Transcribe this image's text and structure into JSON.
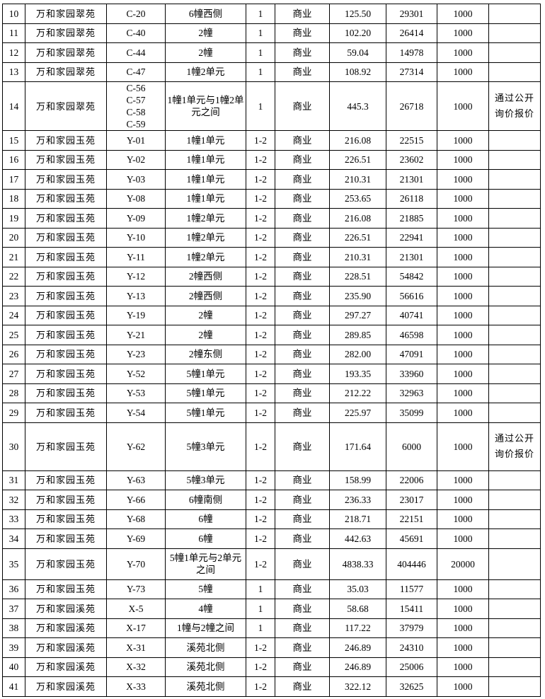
{
  "rows": [
    {
      "no": "10",
      "project": "万和家园翠苑",
      "code": "C-20",
      "location": "6幢西侧",
      "floor": "1",
      "use": "商业",
      "area": "125.50",
      "rent": "29301",
      "deposit": "1000",
      "note": ""
    },
    {
      "no": "11",
      "project": "万和家园翠苑",
      "code": "C-40",
      "location": "2幢",
      "floor": "1",
      "use": "商业",
      "area": "102.20",
      "rent": "26414",
      "deposit": "1000",
      "note": ""
    },
    {
      "no": "12",
      "project": "万和家园翠苑",
      "code": "C-44",
      "location": "2幢",
      "floor": "1",
      "use": "商业",
      "area": "59.04",
      "rent": "14978",
      "deposit": "1000",
      "note": ""
    },
    {
      "no": "13",
      "project": "万和家园翠苑",
      "code": "C-47",
      "location": "1幢2单元",
      "floor": "1",
      "use": "商业",
      "area": "108.92",
      "rent": "27314",
      "deposit": "1000",
      "note": ""
    },
    {
      "no": "14",
      "project": "万和家园翠苑",
      "code": "C-56\nC-57\nC-58\nC-59",
      "location": "1幢1单元与1幢2单元之间",
      "floor": "1",
      "use": "商业",
      "area": "445.3",
      "rent": "26718",
      "deposit": "1000",
      "note": "通过公开询价报价"
    },
    {
      "no": "15",
      "project": "万和家园玉苑",
      "code": "Y-01",
      "location": "1幢1单元",
      "floor": "1-2",
      "use": "商业",
      "area": "216.08",
      "rent": "22515",
      "deposit": "1000",
      "note": ""
    },
    {
      "no": "16",
      "project": "万和家园玉苑",
      "code": "Y-02",
      "location": "1幢1单元",
      "floor": "1-2",
      "use": "商业",
      "area": "226.51",
      "rent": "23602",
      "deposit": "1000",
      "note": ""
    },
    {
      "no": "17",
      "project": "万和家园玉苑",
      "code": "Y-03",
      "location": "1幢1单元",
      "floor": "1-2",
      "use": "商业",
      "area": "210.31",
      "rent": "21301",
      "deposit": "1000",
      "note": ""
    },
    {
      "no": "18",
      "project": "万和家园玉苑",
      "code": "Y-08",
      "location": "1幢1单元",
      "floor": "1-2",
      "use": "商业",
      "area": "253.65",
      "rent": "26118",
      "deposit": "1000",
      "note": ""
    },
    {
      "no": "19",
      "project": "万和家园玉苑",
      "code": "Y-09",
      "location": "1幢2单元",
      "floor": "1-2",
      "use": "商业",
      "area": "216.08",
      "rent": "21885",
      "deposit": "1000",
      "note": ""
    },
    {
      "no": "20",
      "project": "万和家园玉苑",
      "code": "Y-10",
      "location": "1幢2单元",
      "floor": "1-2",
      "use": "商业",
      "area": "226.51",
      "rent": "22941",
      "deposit": "1000",
      "note": ""
    },
    {
      "no": "21",
      "project": "万和家园玉苑",
      "code": "Y-11",
      "location": "1幢2单元",
      "floor": "1-2",
      "use": "商业",
      "area": "210.31",
      "rent": "21301",
      "deposit": "1000",
      "note": ""
    },
    {
      "no": "22",
      "project": "万和家园玉苑",
      "code": "Y-12",
      "location": "2幢西侧",
      "floor": "1-2",
      "use": "商业",
      "area": "228.51",
      "rent": "54842",
      "deposit": "1000",
      "note": ""
    },
    {
      "no": "23",
      "project": "万和家园玉苑",
      "code": "Y-13",
      "location": "2幢西侧",
      "floor": "1-2",
      "use": "商业",
      "area": "235.90",
      "rent": "56616",
      "deposit": "1000",
      "note": ""
    },
    {
      "no": "24",
      "project": "万和家园玉苑",
      "code": "Y-19",
      "location": "2幢",
      "floor": "1-2",
      "use": "商业",
      "area": "297.27",
      "rent": "40741",
      "deposit": "1000",
      "note": ""
    },
    {
      "no": "25",
      "project": "万和家园玉苑",
      "code": "Y-21",
      "location": "2幢",
      "floor": "1-2",
      "use": "商业",
      "area": "289.85",
      "rent": "46598",
      "deposit": "1000",
      "note": ""
    },
    {
      "no": "26",
      "project": "万和家园玉苑",
      "code": "Y-23",
      "location": "2幢东侧",
      "floor": "1-2",
      "use": "商业",
      "area": "282.00",
      "rent": "47091",
      "deposit": "1000",
      "note": ""
    },
    {
      "no": "27",
      "project": "万和家园玉苑",
      "code": "Y-52",
      "location": "5幢1单元",
      "floor": "1-2",
      "use": "商业",
      "area": "193.35",
      "rent": "33960",
      "deposit": "1000",
      "note": ""
    },
    {
      "no": "28",
      "project": "万和家园玉苑",
      "code": "Y-53",
      "location": "5幢1单元",
      "floor": "1-2",
      "use": "商业",
      "area": "212.22",
      "rent": "32963",
      "deposit": "1000",
      "note": ""
    },
    {
      "no": "29",
      "project": "万和家园玉苑",
      "code": "Y-54",
      "location": "5幢1单元",
      "floor": "1-2",
      "use": "商业",
      "area": "225.97",
      "rent": "35099",
      "deposit": "1000",
      "note": ""
    },
    {
      "no": "30",
      "project": "万和家园玉苑",
      "code": "Y-62",
      "location": "5幢3单元",
      "floor": "1-2",
      "use": "商业",
      "area": "171.64",
      "rent": "6000",
      "deposit": "1000",
      "note": "通过公开询价报价"
    },
    {
      "no": "31",
      "project": "万和家园玉苑",
      "code": "Y-63",
      "location": "5幢3单元",
      "floor": "1-2",
      "use": "商业",
      "area": "158.99",
      "rent": "22006",
      "deposit": "1000",
      "note": ""
    },
    {
      "no": "32",
      "project": "万和家园玉苑",
      "code": "Y-66",
      "location": "6幢南侧",
      "floor": "1-2",
      "use": "商业",
      "area": "236.33",
      "rent": "23017",
      "deposit": "1000",
      "note": ""
    },
    {
      "no": "33",
      "project": "万和家园玉苑",
      "code": "Y-68",
      "location": "6幢",
      "floor": "1-2",
      "use": "商业",
      "area": "218.71",
      "rent": "22151",
      "deposit": "1000",
      "note": ""
    },
    {
      "no": "34",
      "project": "万和家园玉苑",
      "code": "Y-69",
      "location": "6幢",
      "floor": "1-2",
      "use": "商业",
      "area": "442.63",
      "rent": "45691",
      "deposit": "1000",
      "note": ""
    },
    {
      "no": "35",
      "project": "万和家园玉苑",
      "code": "Y-70",
      "location": "5幢1单元与2单元之间",
      "floor": "1-2",
      "use": "商业",
      "area": "4838.33",
      "rent": "404446",
      "deposit": "20000",
      "note": ""
    },
    {
      "no": "36",
      "project": "万和家园玉苑",
      "code": "Y-73",
      "location": "5幢",
      "floor": "1",
      "use": "商业",
      "area": "35.03",
      "rent": "11577",
      "deposit": "1000",
      "note": ""
    },
    {
      "no": "37",
      "project": "万和家园溪苑",
      "code": "X-5",
      "location": "4幢",
      "floor": "1",
      "use": "商业",
      "area": "58.68",
      "rent": "15411",
      "deposit": "1000",
      "note": ""
    },
    {
      "no": "38",
      "project": "万和家园溪苑",
      "code": "X-17",
      "location": "1幢与2幢之间",
      "floor": "1",
      "use": "商业",
      "area": "117.22",
      "rent": "37979",
      "deposit": "1000",
      "note": ""
    },
    {
      "no": "39",
      "project": "万和家园溪苑",
      "code": "X-31",
      "location": "溪苑北侧",
      "floor": "1-2",
      "use": "商业",
      "area": "246.89",
      "rent": "24310",
      "deposit": "1000",
      "note": ""
    },
    {
      "no": "40",
      "project": "万和家园溪苑",
      "code": "X-32",
      "location": "溪苑北侧",
      "floor": "1-2",
      "use": "商业",
      "area": "246.89",
      "rent": "25006",
      "deposit": "1000",
      "note": ""
    },
    {
      "no": "41",
      "project": "万和家园溪苑",
      "code": "X-33",
      "location": "溪苑北侧",
      "floor": "1-2",
      "use": "商业",
      "area": "322.12",
      "rent": "32625",
      "deposit": "1000",
      "note": ""
    }
  ]
}
